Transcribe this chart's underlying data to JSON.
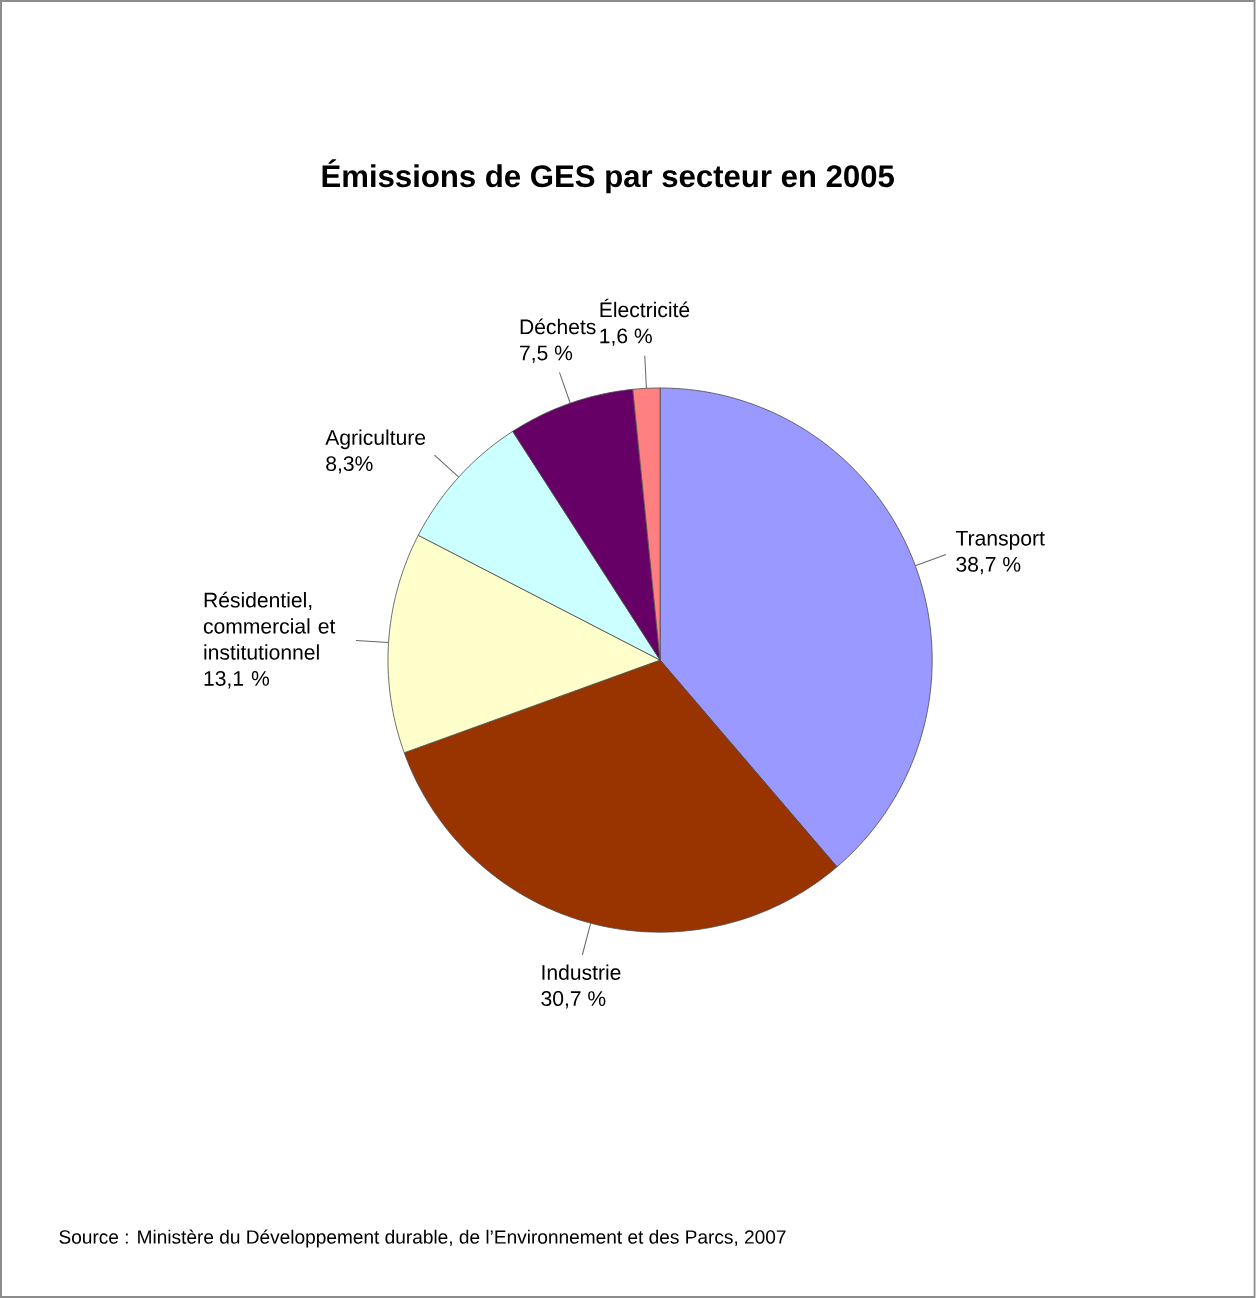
{
  "chart_data": {
    "type": "pie",
    "title": "Émissions de GES par secteur en 2005",
    "categories": [
      "Transport",
      "Industrie",
      "Résidentiel, commercial et institutionnel",
      "Agriculture",
      "Déchets",
      "Électricité"
    ],
    "values": [
      38.7,
      30.7,
      13.1,
      8.3,
      7.5,
      1.6
    ],
    "value_labels": [
      "38,7 %",
      "30,7 %",
      "13,1 %",
      "8,3%",
      "7,5 %",
      "1,6 %"
    ],
    "colors": [
      "#9999ff",
      "#993300",
      "#ffffcc",
      "#ccffff",
      "#660066",
      "#ff8080"
    ],
    "annotations": [
      "Source : Ministère du Développement durable, de l’Environnement et des Parcs, 2007"
    ]
  }
}
